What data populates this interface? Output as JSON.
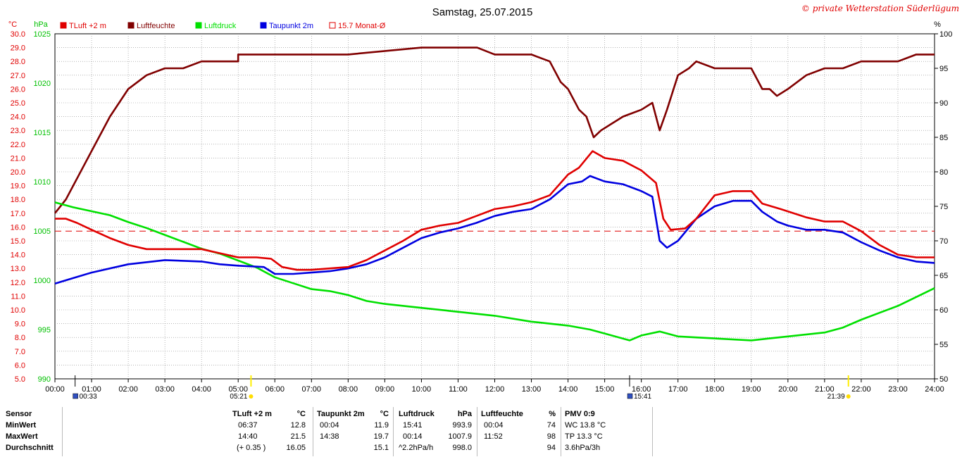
{
  "title": "Samstag, 25.07.2015",
  "copyright": "© private Wetterstation Süderlügum",
  "axis_units": {
    "temp": "°C",
    "pressure": "hPa",
    "humidity": "%"
  },
  "legend": [
    {
      "label": "TLuft +2 m",
      "color": "#e00000",
      "filled": true
    },
    {
      "label": "Luftfeuchte",
      "color": "#800000",
      "filled": true
    },
    {
      "label": "Luftdruck",
      "color": "#00e000",
      "filled": true
    },
    {
      "label": "Taupunkt 2m",
      "color": "#0000e0",
      "filled": true
    },
    {
      "label": "15.7 Monat-Ø",
      "color": "#e00000",
      "filled": false
    }
  ],
  "markers": [
    {
      "time": "00:33",
      "hour": 0.55,
      "kind": "moon"
    },
    {
      "time": "05:21",
      "hour": 5.35,
      "kind": "sun"
    },
    {
      "time": "15:41",
      "hour": 15.68,
      "kind": "moon"
    },
    {
      "time": "21:39",
      "hour": 21.65,
      "kind": "sun"
    }
  ],
  "chart_data": {
    "type": "line",
    "x_unit": "hour",
    "xlim": [
      0,
      24
    ],
    "x_ticks": [
      "00:00",
      "01:00",
      "02:00",
      "03:00",
      "04:00",
      "05:00",
      "06:00",
      "07:00",
      "08:00",
      "09:00",
      "10:00",
      "11:00",
      "12:00",
      "13:00",
      "14:00",
      "15:00",
      "16:00",
      "17:00",
      "18:00",
      "19:00",
      "20:00",
      "21:00",
      "22:00",
      "23:00",
      "24:00"
    ],
    "axes": {
      "temp": {
        "lim": [
          5.0,
          30.0
        ],
        "ticks": [
          "5.0",
          "6.0",
          "7.0",
          "8.0",
          "9.0",
          "10.0",
          "11.0",
          "12.0",
          "13.0",
          "14.0",
          "15.0",
          "16.0",
          "17.0",
          "18.0",
          "19.0",
          "20.0",
          "21.0",
          "22.0",
          "23.0",
          "24.0",
          "25.0",
          "26.0",
          "27.0",
          "28.0",
          "29.0",
          "30.0"
        ]
      },
      "pressure": {
        "lim": [
          990,
          1025
        ],
        "ticks": [
          "990",
          "995",
          "1000",
          "1005",
          "1010",
          "1015",
          "1020",
          "1025"
        ]
      },
      "humidity": {
        "lim": [
          50,
          100
        ],
        "ticks": [
          "50",
          "55",
          "60",
          "65",
          "70",
          "75",
          "80",
          "85",
          "90",
          "95",
          "100"
        ]
      }
    },
    "monthly_avg_temp": 15.7,
    "series": [
      {
        "name": "TLuft +2 m",
        "axis": "temp",
        "color": "#e00000",
        "points": [
          [
            0,
            16.6
          ],
          [
            0.3,
            16.6
          ],
          [
            0.6,
            16.3
          ],
          [
            1,
            15.8
          ],
          [
            1.5,
            15.2
          ],
          [
            2,
            14.7
          ],
          [
            2.5,
            14.4
          ],
          [
            3,
            14.4
          ],
          [
            4,
            14.4
          ],
          [
            4.5,
            14.1
          ],
          [
            5,
            13.8
          ],
          [
            5.5,
            13.8
          ],
          [
            5.9,
            13.7
          ],
          [
            6.2,
            13.1
          ],
          [
            6.6,
            12.9
          ],
          [
            7,
            12.9
          ],
          [
            7.5,
            13.0
          ],
          [
            8,
            13.1
          ],
          [
            8.5,
            13.6
          ],
          [
            9,
            14.3
          ],
          [
            9.5,
            15.0
          ],
          [
            10,
            15.8
          ],
          [
            10.5,
            16.1
          ],
          [
            11,
            16.3
          ],
          [
            11.5,
            16.8
          ],
          [
            12,
            17.3
          ],
          [
            12.5,
            17.5
          ],
          [
            13,
            17.8
          ],
          [
            13.5,
            18.3
          ],
          [
            14,
            19.8
          ],
          [
            14.3,
            20.3
          ],
          [
            14.67,
            21.5
          ],
          [
            15,
            21.0
          ],
          [
            15.5,
            20.8
          ],
          [
            16,
            20.1
          ],
          [
            16.4,
            19.2
          ],
          [
            16.6,
            16.6
          ],
          [
            16.8,
            15.8
          ],
          [
            17.2,
            15.9
          ],
          [
            17.5,
            16.6
          ],
          [
            18,
            18.3
          ],
          [
            18.5,
            18.6
          ],
          [
            19,
            18.6
          ],
          [
            19.3,
            17.7
          ],
          [
            19.8,
            17.3
          ],
          [
            20.5,
            16.7
          ],
          [
            21,
            16.4
          ],
          [
            21.5,
            16.4
          ],
          [
            22,
            15.7
          ],
          [
            22.5,
            14.7
          ],
          [
            23,
            14.0
          ],
          [
            23.5,
            13.8
          ],
          [
            24,
            13.8
          ]
        ]
      },
      {
        "name": "Taupunkt 2m",
        "axis": "temp",
        "color": "#0000e0",
        "points": [
          [
            0,
            11.9
          ],
          [
            0.5,
            12.3
          ],
          [
            1,
            12.7
          ],
          [
            2,
            13.3
          ],
          [
            3,
            13.6
          ],
          [
            4,
            13.5
          ],
          [
            4.5,
            13.3
          ],
          [
            5,
            13.2
          ],
          [
            5.7,
            13.1
          ],
          [
            6,
            12.6
          ],
          [
            6.5,
            12.6
          ],
          [
            7,
            12.7
          ],
          [
            7.5,
            12.8
          ],
          [
            8,
            13.0
          ],
          [
            8.5,
            13.3
          ],
          [
            9,
            13.8
          ],
          [
            9.5,
            14.5
          ],
          [
            10,
            15.2
          ],
          [
            10.5,
            15.6
          ],
          [
            11,
            15.9
          ],
          [
            11.5,
            16.3
          ],
          [
            12,
            16.8
          ],
          [
            12.5,
            17.1
          ],
          [
            13,
            17.3
          ],
          [
            13.5,
            18.0
          ],
          [
            14,
            19.1
          ],
          [
            14.38,
            19.3
          ],
          [
            14.6,
            19.7
          ],
          [
            15,
            19.3
          ],
          [
            15.5,
            19.1
          ],
          [
            16,
            18.6
          ],
          [
            16.3,
            18.2
          ],
          [
            16.5,
            15.0
          ],
          [
            16.7,
            14.5
          ],
          [
            17,
            15.0
          ],
          [
            17.5,
            16.6
          ],
          [
            18,
            17.5
          ],
          [
            18.5,
            17.9
          ],
          [
            19,
            17.9
          ],
          [
            19.3,
            17.1
          ],
          [
            19.7,
            16.4
          ],
          [
            20,
            16.1
          ],
          [
            20.5,
            15.8
          ],
          [
            21,
            15.8
          ],
          [
            21.5,
            15.6
          ],
          [
            22,
            14.9
          ],
          [
            22.5,
            14.3
          ],
          [
            23,
            13.8
          ],
          [
            23.5,
            13.5
          ],
          [
            24,
            13.4
          ]
        ]
      },
      {
        "name": "Luftdruck",
        "axis": "pressure",
        "color": "#00e000",
        "points": [
          [
            0,
            1007.9
          ],
          [
            0.5,
            1007.4
          ],
          [
            1,
            1007.0
          ],
          [
            1.5,
            1006.6
          ],
          [
            2,
            1005.9
          ],
          [
            2.5,
            1005.3
          ],
          [
            3,
            1004.6
          ],
          [
            3.5,
            1003.9
          ],
          [
            4,
            1003.2
          ],
          [
            4.5,
            1002.7
          ],
          [
            5,
            1002.0
          ],
          [
            5.5,
            1001.3
          ],
          [
            6,
            1000.3
          ],
          [
            6.5,
            999.7
          ],
          [
            7,
            999.1
          ],
          [
            7.5,
            998.9
          ],
          [
            8,
            998.5
          ],
          [
            8.5,
            997.9
          ],
          [
            9,
            997.6
          ],
          [
            10,
            997.2
          ],
          [
            11,
            996.8
          ],
          [
            12,
            996.4
          ],
          [
            13,
            995.8
          ],
          [
            14,
            995.4
          ],
          [
            14.6,
            995.0
          ],
          [
            15,
            994.6
          ],
          [
            15.68,
            993.9
          ],
          [
            16,
            994.4
          ],
          [
            16.5,
            994.8
          ],
          [
            17,
            994.3
          ],
          [
            18,
            994.1
          ],
          [
            19,
            993.9
          ],
          [
            19.5,
            994.1
          ],
          [
            20,
            994.3
          ],
          [
            21,
            994.7
          ],
          [
            21.5,
            995.2
          ],
          [
            22,
            996.0
          ],
          [
            22.5,
            996.7
          ],
          [
            23,
            997.4
          ],
          [
            23.5,
            998.3
          ],
          [
            24,
            999.2
          ]
        ]
      },
      {
        "name": "Luftfeuchte",
        "axis": "humidity",
        "color": "#800000",
        "points": [
          [
            0,
            74
          ],
          [
            0.3,
            76
          ],
          [
            0.6,
            79
          ],
          [
            1,
            83
          ],
          [
            1.5,
            88
          ],
          [
            2,
            92
          ],
          [
            2.5,
            94
          ],
          [
            3,
            95
          ],
          [
            3.5,
            95
          ],
          [
            4,
            96
          ],
          [
            5,
            96
          ],
          [
            5,
            97
          ],
          [
            6,
            97
          ],
          [
            8,
            97
          ],
          [
            10,
            98
          ],
          [
            11.52,
            98
          ],
          [
            12,
            97
          ],
          [
            13,
            97
          ],
          [
            13.5,
            96
          ],
          [
            13.8,
            93
          ],
          [
            14,
            92
          ],
          [
            14.3,
            89
          ],
          [
            14.5,
            88
          ],
          [
            14.7,
            85
          ],
          [
            14.9,
            86
          ],
          [
            15.2,
            87
          ],
          [
            15.5,
            88
          ],
          [
            16,
            89
          ],
          [
            16.3,
            90
          ],
          [
            16.5,
            86
          ],
          [
            16.7,
            89
          ],
          [
            17,
            94
          ],
          [
            17.3,
            95
          ],
          [
            17.5,
            96
          ],
          [
            18,
            95
          ],
          [
            19,
            95
          ],
          [
            19.3,
            92
          ],
          [
            19.5,
            92
          ],
          [
            19.7,
            91
          ],
          [
            20,
            92
          ],
          [
            20.5,
            94
          ],
          [
            21,
            95
          ],
          [
            21.5,
            95
          ],
          [
            22,
            96
          ],
          [
            23,
            96
          ],
          [
            23.5,
            97
          ],
          [
            24,
            97
          ]
        ]
      }
    ]
  },
  "table": {
    "rows": [
      "Sensor",
      "MinWert",
      "MaxWert",
      "Durchschnitt"
    ],
    "tluft": {
      "header": "TLuft +2 m",
      "unit": "°C",
      "min_time": "06:37",
      "min": "12.8",
      "max_time": "14:40",
      "max": "21.5",
      "avg_note": "(+ 0.35 )",
      "avg": "16.05"
    },
    "taupunkt": {
      "header": "Taupunkt 2m",
      "unit": "°C",
      "min_time": "00:04",
      "min": "11.9",
      "max_time": "14:38",
      "max": "19.7",
      "avg": "15.1"
    },
    "luftdruck": {
      "header": "Luftdruck",
      "unit": "hPa",
      "min_time": "15:41",
      "min": "993.9",
      "max_time": "00:14",
      "max": "1007.9",
      "trend": "^2.2hPa/h",
      "avg": "998.0"
    },
    "luftfeuchte": {
      "header": "Luftfeuchte",
      "unit": "%",
      "min_time": "00:04",
      "min": "74",
      "max_time": "11:52",
      "max": "98",
      "avg": "94"
    },
    "pmv": {
      "header": "PMV 0:9",
      "wc": "WC 13.8 °C",
      "tp": "TP 13.3 °C",
      "trend": "3.6hPa/3h"
    }
  }
}
